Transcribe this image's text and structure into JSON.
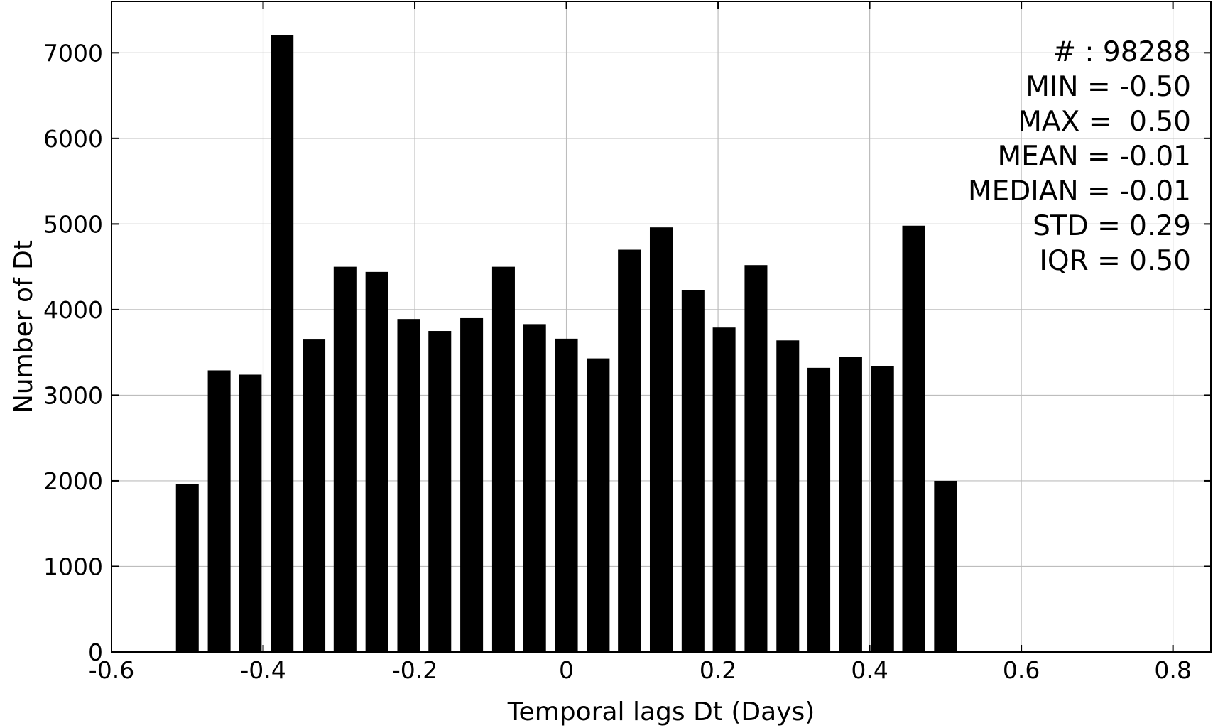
{
  "chart_data": {
    "type": "bar",
    "xlabel": "Temporal lags Dt (Days)",
    "ylabel": "Number of Dt",
    "xlim": [
      -0.6,
      0.85
    ],
    "ylim": [
      0,
      7600
    ],
    "grid": true,
    "x_ticks": [
      -0.6,
      -0.4,
      -0.2,
      0,
      0.2,
      0.4,
      0.6,
      0.8
    ],
    "x_tick_labels": [
      "-0.6",
      "-0.4",
      "-0.2",
      "0",
      "0.2",
      "0.4",
      "0.6",
      "0.8"
    ],
    "y_ticks": [
      0,
      1000,
      2000,
      3000,
      4000,
      5000,
      6000,
      7000
    ],
    "y_tick_labels": [
      "0",
      "1000",
      "2000",
      "3000",
      "4000",
      "5000",
      "6000",
      "7000"
    ],
    "bar_width": 0.03,
    "x": [
      -0.5,
      -0.458,
      -0.417,
      -0.375,
      -0.333,
      -0.292,
      -0.25,
      -0.208,
      -0.167,
      -0.125,
      -0.083,
      -0.042,
      0.0,
      0.042,
      0.083,
      0.125,
      0.167,
      0.208,
      0.25,
      0.292,
      0.333,
      0.375,
      0.417,
      0.458,
      0.5
    ],
    "values": [
      1960,
      3290,
      3240,
      7210,
      3650,
      4500,
      4440,
      3890,
      3750,
      3900,
      4500,
      3830,
      3660,
      3430,
      4700,
      4960,
      4230,
      3790,
      4520,
      3640,
      3320,
      3450,
      3340,
      4980,
      2000
    ],
    "annotations": [
      "# : 98288",
      "MIN = -0.50",
      "MAX =  0.50",
      "MEAN = -0.01",
      "MEDIAN = -0.01",
      "STD = 0.29",
      "IQR = 0.50"
    ]
  }
}
